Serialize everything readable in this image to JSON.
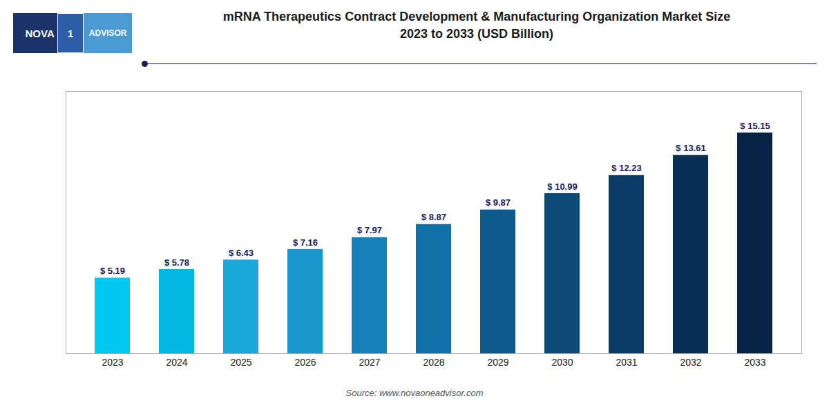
{
  "chart_data": {
    "type": "bar",
    "title": "mRNA Therapeutics Contract Development & Manufacturing Organization Market Size",
    "subtitle": "2023 to 2033 (USD Billion)",
    "categories": [
      "2023",
      "2024",
      "2025",
      "2026",
      "2027",
      "2028",
      "2029",
      "2030",
      "2031",
      "2032",
      "2033"
    ],
    "values": [
      5.19,
      5.78,
      6.43,
      7.16,
      7.97,
      8.87,
      9.87,
      10.99,
      12.23,
      13.61,
      15.15
    ],
    "value_labels": [
      "$ 5.19",
      "$ 5.78",
      "$ 6.43",
      "$ 7.16",
      "$ 7.97",
      "$ 8.87",
      "$ 9.87",
      "$ 10.99",
      "$ 12.23",
      "$ 13.61",
      "$ 15.15"
    ],
    "colors": [
      "#00C8F0",
      "#00B8E0",
      "#1AA8D8",
      "#1898CC",
      "#1680B8",
      "#1270A8",
      "#0E5A8A",
      "#0C4A78",
      "#0A3A66",
      "#082E54",
      "#062244"
    ],
    "data_labels": true,
    "ylim": [
      0,
      18
    ],
    "yticks": [],
    "grid": false,
    "tick_labels": "x",
    "annotations": [
      "NOVA",
      "1",
      "ADVISOR",
      "Source: www.novaoneadvisor.com"
    ]
  }
}
